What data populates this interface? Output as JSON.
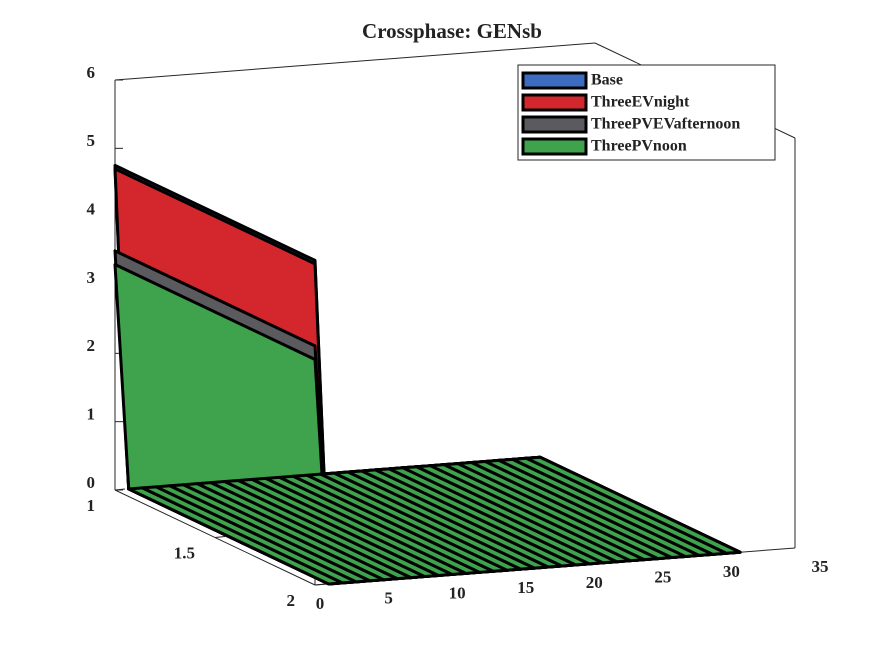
{
  "chart_data": {
    "type": "ribbon3d",
    "title": "Crossphase: GENsb",
    "x": [
      0,
      1,
      2,
      3,
      4,
      5,
      6,
      7,
      8,
      9,
      10,
      11,
      12,
      13,
      14,
      15,
      16,
      17,
      18,
      19,
      20,
      21,
      22,
      23,
      24,
      25,
      26,
      27,
      28,
      29,
      30,
      31
    ],
    "depth": [
      1,
      2
    ],
    "series": [
      {
        "name": "Base",
        "color": "#3b6cc0",
        "values": [
          4.75,
          0,
          0,
          0,
          0,
          0,
          0,
          0,
          0,
          0,
          0,
          0,
          0,
          0,
          0,
          0,
          0,
          0,
          0,
          0,
          0,
          0,
          0,
          0,
          0,
          0,
          0,
          0,
          0,
          0,
          0,
          0
        ]
      },
      {
        "name": "ThreeEVnight",
        "color": "#d4272d",
        "values": [
          4.7,
          0,
          0,
          0,
          0,
          0,
          0,
          0,
          0,
          0,
          0,
          0,
          0,
          0,
          0,
          0,
          0,
          0,
          0,
          0,
          0,
          0,
          0,
          0,
          0,
          0,
          0,
          0,
          0,
          0,
          0,
          0
        ]
      },
      {
        "name": "ThreePVEVafternoon",
        "color": "#5b5b5f",
        "values": [
          3.5,
          0,
          0,
          0,
          0,
          0,
          0,
          0,
          0,
          0,
          0,
          0,
          0,
          0,
          0,
          0,
          0,
          0,
          0,
          0,
          0,
          0,
          0,
          0,
          0,
          0,
          0,
          0,
          0,
          0,
          0,
          0
        ]
      },
      {
        "name": "ThreePVnoon",
        "color": "#3fa24c",
        "values": [
          3.3,
          0,
          0,
          0,
          0,
          0,
          0,
          0,
          0,
          0,
          0,
          0,
          0,
          0,
          0,
          0,
          0,
          0,
          0,
          0,
          0,
          0,
          0,
          0,
          0,
          0,
          0,
          0,
          0,
          0,
          0,
          0
        ]
      }
    ],
    "xlim": [
      0,
      35
    ],
    "xticks": [
      0,
      5,
      10,
      15,
      20,
      25,
      30,
      35
    ],
    "ylim": [
      1,
      2
    ],
    "yticks": [
      1,
      1.5,
      2
    ],
    "zlim": [
      0,
      6
    ],
    "zticks": [
      0,
      1,
      2,
      3,
      4,
      5,
      6
    ],
    "legend": "top-right"
  }
}
